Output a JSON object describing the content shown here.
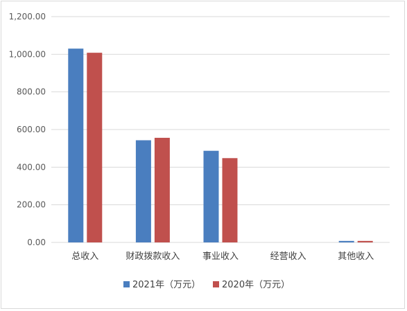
{
  "chart_data": {
    "type": "bar",
    "categories": [
      "总收入",
      "财政拨款收入",
      "事业收入",
      "经营收入",
      "其他收入"
    ],
    "series": [
      {
        "name": "2021年（万元）",
        "color": "#4a7ebf",
        "values": [
          1030,
          543,
          487,
          0,
          8
        ]
      },
      {
        "name": "2020年（万元）",
        "color": "#c0504d",
        "values": [
          1008,
          556,
          448,
          0,
          8
        ]
      }
    ],
    "ylim": [
      0,
      1200
    ],
    "yticks": [
      "0.00",
      "200.00",
      "400.00",
      "600.00",
      "800.00",
      "1,000.00",
      "1,200.00"
    ],
    "ytick_values": [
      0,
      200,
      400,
      600,
      800,
      1000,
      1200
    ],
    "grid": true,
    "legend_position": "bottom"
  }
}
